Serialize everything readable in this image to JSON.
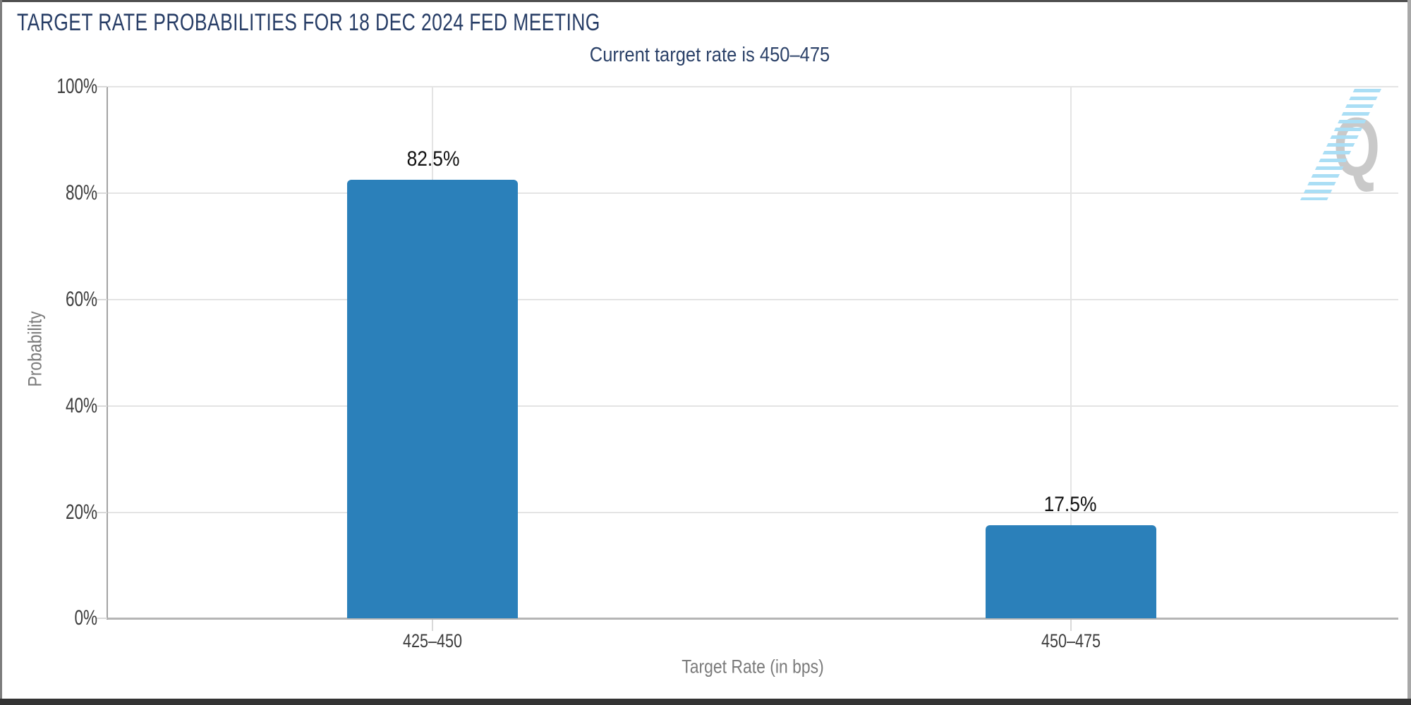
{
  "header": {
    "title": "TARGET RATE PROBABILITIES FOR 18 DEC 2024 FED MEETING",
    "subtitle": "Current target rate is 450–475"
  },
  "watermark": {
    "letter": "Q",
    "description": "quikstrike-logo"
  },
  "colors": {
    "bar": "#2b80ba",
    "title_text": "#273d66",
    "subtitle_text": "#2b4168",
    "tick_text": "#3d3d3d",
    "axis_title_text": "#7a7a7a",
    "watermark_gray": "#c9c9c9",
    "watermark_blue": "#aadef5"
  },
  "chart_data": {
    "type": "bar",
    "title": "TARGET RATE PROBABILITIES FOR 18 DEC 2024 FED MEETING",
    "subtitle": "Current target rate is 450–475",
    "categories": [
      "425–450",
      "450–475"
    ],
    "values": [
      82.5,
      17.5
    ],
    "value_labels": [
      "82.5%",
      "17.5%"
    ],
    "xlabel": "Target Rate (in bps)",
    "ylabel": "Probability",
    "ylim": [
      0,
      100
    ],
    "yticks": [
      100,
      80,
      60,
      40,
      20,
      0
    ],
    "ytick_labels": [
      "100%",
      "80%",
      "60%",
      "40%",
      "20%",
      "0%"
    ],
    "grid": true,
    "legend": false,
    "bar_color": "#2b80ba"
  }
}
